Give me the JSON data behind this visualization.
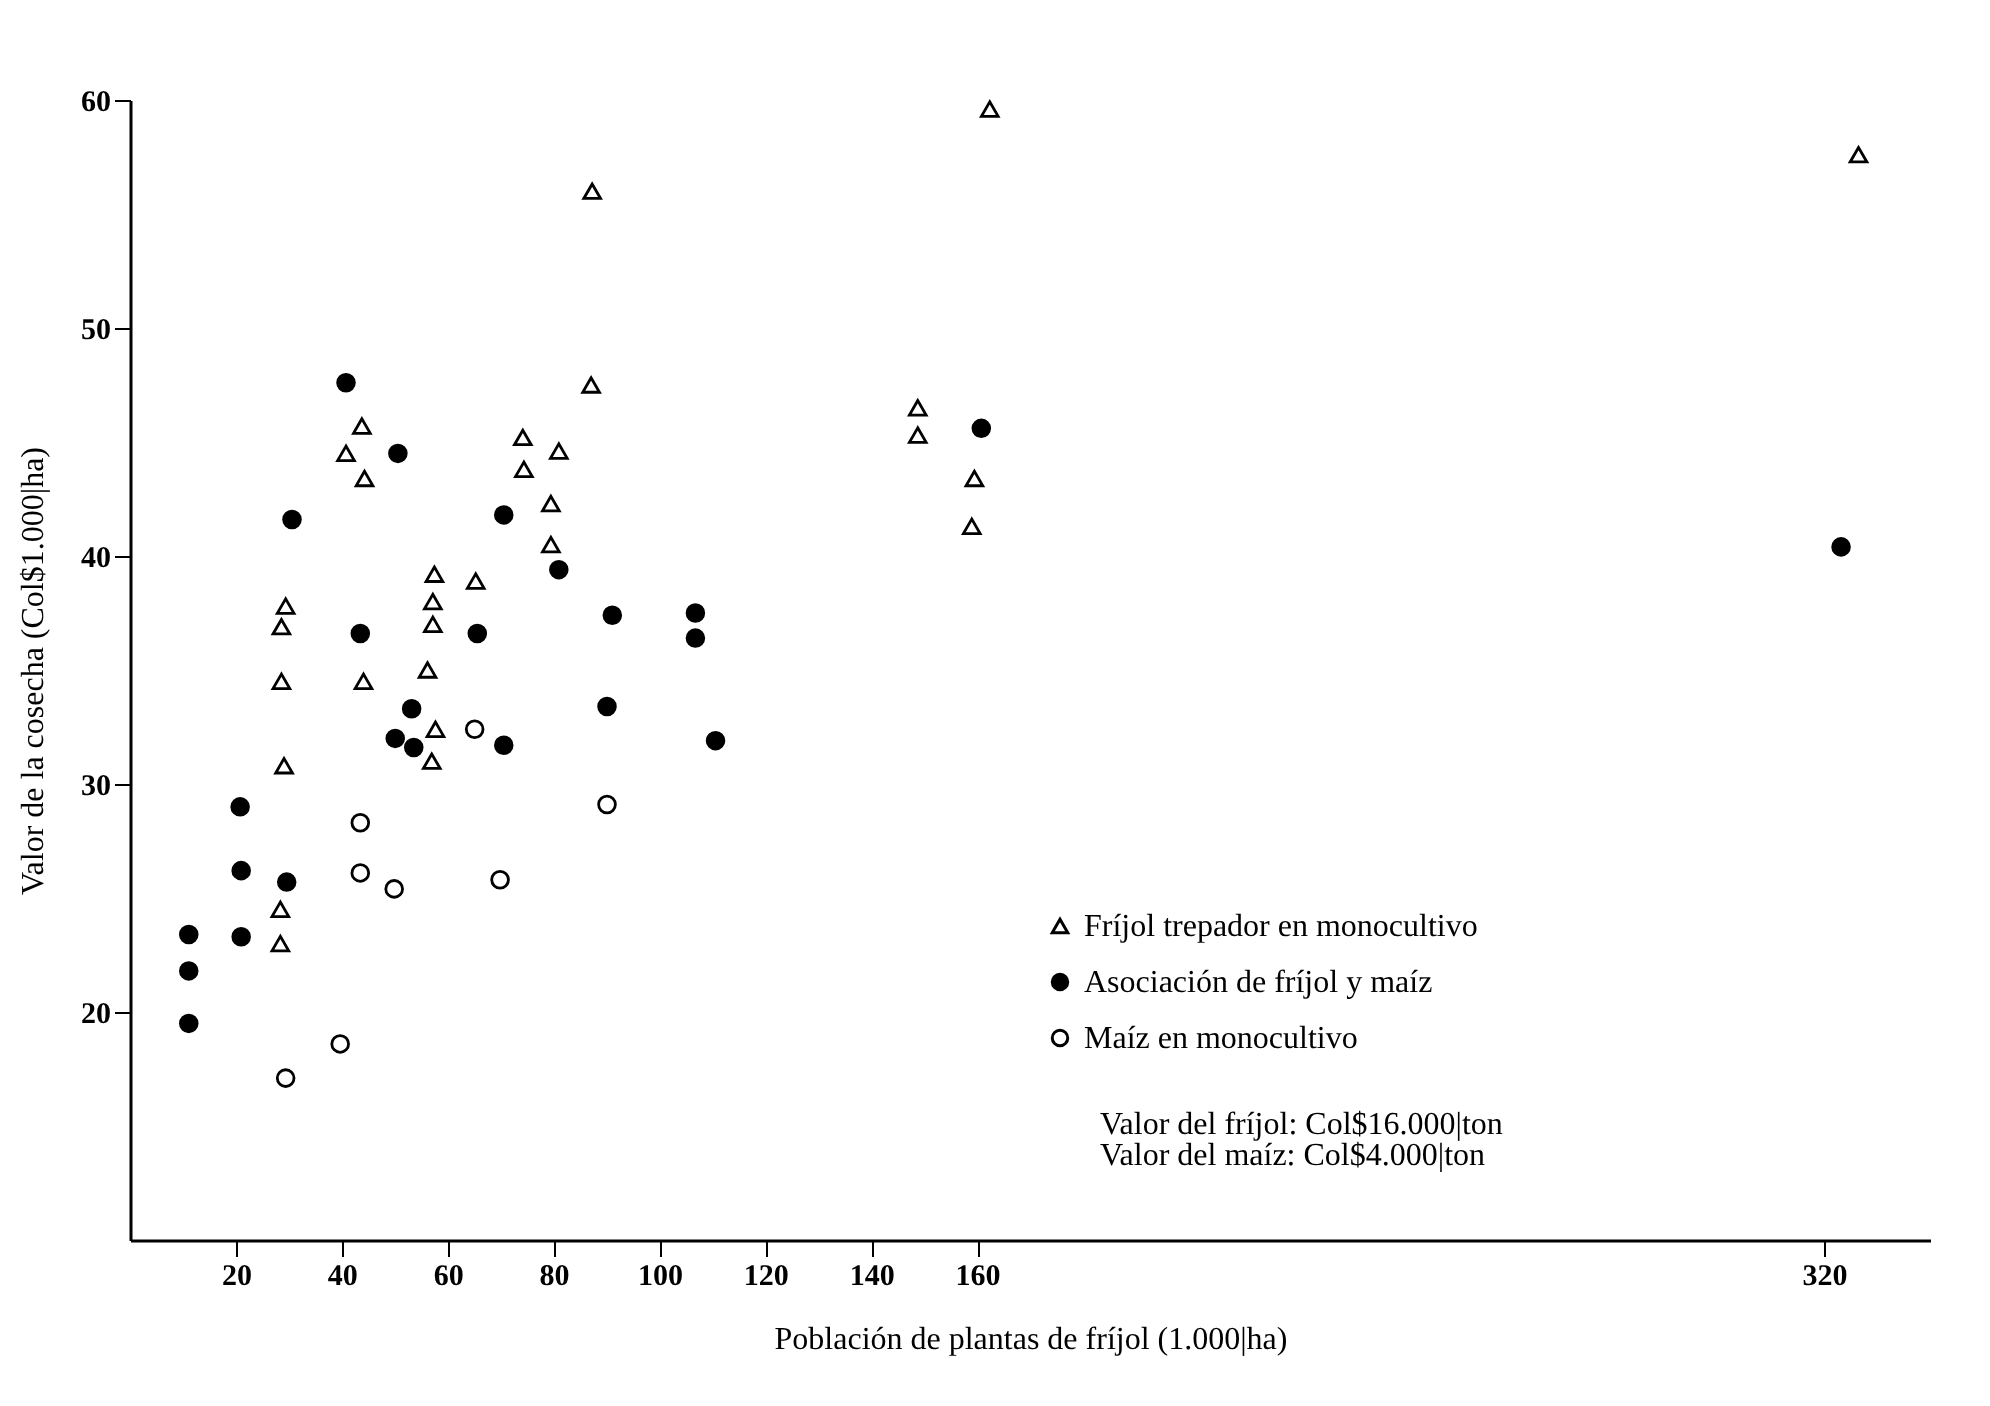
{
  "chart_data": {
    "type": "scatter",
    "xlabel": "Población de plantas de fríjol (1.000|ha)",
    "ylabel": "Valor de la cosecha (Col$1.000|ha)",
    "xlim": [
      0,
      340
    ],
    "xticks": [
      20,
      40,
      60,
      80,
      100,
      120,
      140,
      160,
      320
    ],
    "ylim": [
      10,
      60
    ],
    "yticks": [
      20,
      30,
      40,
      50,
      60
    ],
    "grid": false,
    "legend": "bottom right",
    "annotations": [
      "Valor del fríjol: Col$16.000|ton",
      "Valor del maíz: Col$4.000|ton"
    ],
    "series": [
      {
        "name": "Fríjol trepador en monocultivo",
        "color": "#ffffff",
        "marker": "triangle",
        "x": [
          87.3,
          87.1,
          43.8,
          40.8,
          44.3,
          74.2,
          74.4,
          81.0,
          79.5,
          79.5,
          57.5,
          65.3,
          29.4,
          28.6,
          57.2,
          57.2,
          28.6,
          44.1,
          56.2,
          57.7,
          57.0,
          29.1,
          28.4,
          28.4,
          162.4,
          326.5,
          148.8,
          148.8,
          159.5,
          159.0
        ],
        "values": [
          56.0,
          47.5,
          45.7,
          44.5,
          43.4,
          45.2,
          43.8,
          44.6,
          42.3,
          40.5,
          39.2,
          38.9,
          37.8,
          36.9,
          38.0,
          37.0,
          34.5,
          34.5,
          35.0,
          32.4,
          31.0,
          30.8,
          24.5,
          23.0,
          59.6,
          57.6,
          46.5,
          45.3,
          43.4,
          41.3
        ]
      },
      {
        "name": "Asociación de fríjol y maíz",
        "color": "#000000",
        "marker": "circle",
        "x": [
          40.8,
          50.6,
          30.6,
          70.6,
          81.0,
          91.1,
          43.5,
          65.6,
          90.1,
          53.2,
          50.1,
          53.6,
          70.6,
          20.8,
          21.0,
          29.6,
          21.0,
          11.1,
          11.1,
          11.1,
          160.8,
          323.2,
          106.8,
          106.8,
          110.6
        ],
        "values": [
          47.6,
          44.5,
          41.6,
          41.8,
          39.4,
          37.4,
          36.6,
          36.6,
          33.4,
          33.3,
          32.0,
          31.6,
          31.7,
          29.0,
          26.2,
          25.7,
          23.3,
          23.4,
          21.8,
          19.5,
          45.6,
          40.4,
          37.5,
          36.4,
          31.9
        ]
      },
      {
        "name": "Maíz en monocultivo",
        "color": "#ffffff",
        "marker": "circle",
        "x": [
          65.1,
          43.5,
          43.5,
          49.9,
          69.9,
          90.1,
          39.7,
          29.4
        ],
        "values": [
          32.4,
          28.3,
          26.1,
          25.4,
          25.8,
          29.1,
          18.6,
          17.1
        ]
      }
    ]
  }
}
